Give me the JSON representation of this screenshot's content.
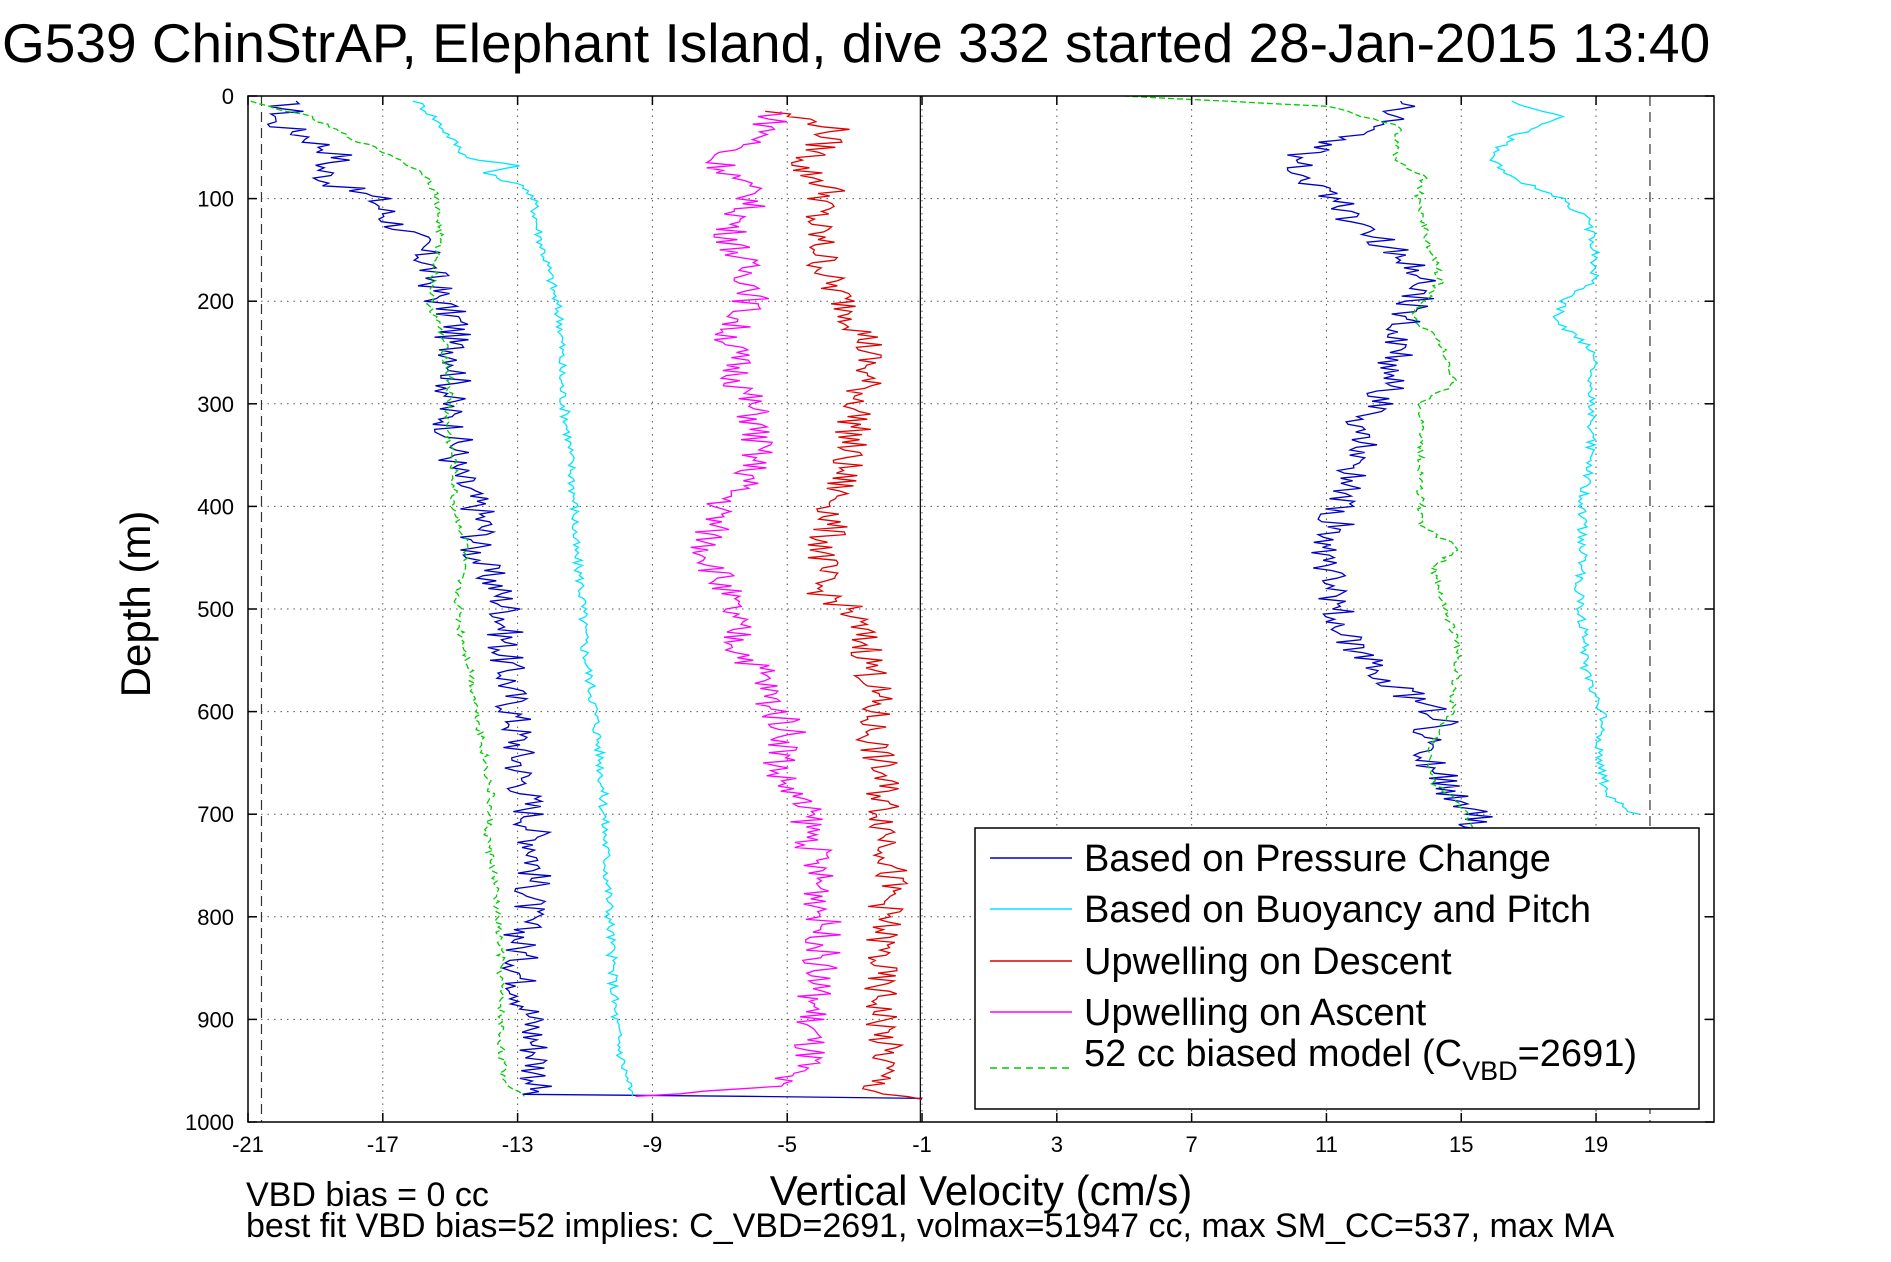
{
  "chart_data": {
    "type": "line",
    "title": "G539 ChinStrAP, Elephant Island, dive 332 started 28-Jan-2015 13:40",
    "xlabel": "Vertical Velocity (cm/s)",
    "ylabel": "Depth (m)",
    "xlim": [
      -21,
      22.5
    ],
    "ylim": [
      0,
      1000
    ],
    "y_reversed": true,
    "grid": true,
    "legend_placement": "bottom-right",
    "xticks": [
      "-21",
      "-17",
      "-13",
      "-9",
      "-5",
      "-1",
      "3",
      "7",
      "11",
      "15",
      "19"
    ],
    "yticks": [
      "0",
      "100",
      "200",
      "300",
      "400",
      "500",
      "600",
      "700",
      "800",
      "900",
      "1000"
    ],
    "reference_lines_x": [
      -1.05,
      -20.6,
      20.6
    ],
    "series": [
      {
        "name": "Based on Pressure Change",
        "color": "#0000c8",
        "style": "solid",
        "points": [
          [
            -20,
            5
          ],
          [
            -19.8,
            15
          ],
          [
            -20.3,
            25
          ],
          [
            -19.2,
            40
          ],
          [
            -18.2,
            60
          ],
          [
            -18.8,
            70
          ],
          [
            -18.5,
            85
          ],
          [
            -17.2,
            100
          ],
          [
            -16.8,
            120
          ],
          [
            -16.0,
            140
          ],
          [
            -15.7,
            160
          ],
          [
            -15.5,
            180
          ],
          [
            -15.3,
            200
          ],
          [
            -14.8,
            220
          ],
          [
            -15.0,
            240
          ],
          [
            -14.7,
            260
          ],
          [
            -14.9,
            280
          ],
          [
            -15.1,
            300
          ],
          [
            -15.0,
            320
          ],
          [
            -14.8,
            340
          ],
          [
            -14.9,
            360
          ],
          [
            -14.6,
            380
          ],
          [
            -14.2,
            400
          ],
          [
            -14.0,
            420
          ],
          [
            -14.3,
            440
          ],
          [
            -14.0,
            460
          ],
          [
            -13.6,
            480
          ],
          [
            -13.3,
            500
          ],
          [
            -13.4,
            540
          ],
          [
            -13.2,
            580
          ],
          [
            -13.0,
            620
          ],
          [
            -12.9,
            660
          ],
          [
            -12.6,
            700
          ],
          [
            -12.4,
            740
          ],
          [
            -12.6,
            780
          ],
          [
            -12.9,
            820
          ],
          [
            -12.9,
            860
          ],
          [
            -12.6,
            900
          ],
          [
            -12.4,
            940
          ],
          [
            -12.4,
            960
          ],
          [
            -12.6,
            973
          ],
          [
            -1.0,
            977
          ]
        ],
        "points_ascent": [
          [
            12.8,
            975
          ],
          [
            15.3,
            720
          ],
          [
            15.6,
            700
          ],
          [
            14.7,
            680
          ],
          [
            14.4,
            660
          ],
          [
            13.8,
            640
          ],
          [
            14.0,
            620
          ],
          [
            14.6,
            610
          ],
          [
            13.3,
            580
          ],
          [
            12.6,
            560
          ],
          [
            11.7,
            540
          ],
          [
            11.5,
            520
          ],
          [
            11.3,
            500
          ],
          [
            11.3,
            480
          ],
          [
            11.0,
            460
          ],
          [
            11.1,
            440
          ],
          [
            11.3,
            420
          ],
          [
            11.3,
            400
          ],
          [
            11.7,
            380
          ],
          [
            11.6,
            360
          ],
          [
            12.0,
            340
          ],
          [
            11.8,
            320
          ],
          [
            12.6,
            300
          ],
          [
            12.8,
            280
          ],
          [
            12.9,
            260
          ],
          [
            13.2,
            240
          ],
          [
            13.4,
            220
          ],
          [
            13.6,
            200
          ],
          [
            14.0,
            180
          ],
          [
            13.3,
            160
          ],
          [
            12.5,
            140
          ],
          [
            11.7,
            120
          ],
          [
            11.4,
            100
          ],
          [
            10.3,
            80
          ],
          [
            10.2,
            60
          ],
          [
            11.5,
            40
          ],
          [
            12.7,
            30
          ],
          [
            13.0,
            15
          ],
          [
            13.2,
            5
          ]
        ]
      },
      {
        "name": "Based on Buoyancy and Pitch",
        "color": "#00e5ff",
        "style": "solid",
        "points": [
          [
            -16.0,
            5
          ],
          [
            -15.5,
            20
          ],
          [
            -15.0,
            40
          ],
          [
            -14.5,
            60
          ],
          [
            -13.0,
            68
          ],
          [
            -14.0,
            75
          ],
          [
            -12.7,
            90
          ],
          [
            -12.5,
            105
          ],
          [
            -12.4,
            130
          ],
          [
            -12.0,
            180
          ],
          [
            -11.7,
            225
          ],
          [
            -11.7,
            280
          ],
          [
            -11.5,
            330
          ],
          [
            -11.3,
            400
          ],
          [
            -11.3,
            440
          ],
          [
            -11.1,
            480
          ],
          [
            -11.0,
            540
          ],
          [
            -10.7,
            600
          ],
          [
            -10.5,
            660
          ],
          [
            -10.4,
            720
          ],
          [
            -10.3,
            780
          ],
          [
            -10.2,
            840
          ],
          [
            -10.1,
            900
          ],
          [
            -9.9,
            940
          ],
          [
            -9.6,
            975
          ]
        ],
        "points_ascent": [
          [
            20.2,
            700
          ],
          [
            19.3,
            680
          ],
          [
            19.1,
            640
          ],
          [
            19.2,
            600
          ],
          [
            18.7,
            560
          ],
          [
            18.6,
            520
          ],
          [
            18.5,
            480
          ],
          [
            18.6,
            440
          ],
          [
            18.6,
            400
          ],
          [
            18.8,
            360
          ],
          [
            18.9,
            320
          ],
          [
            18.9,
            280
          ],
          [
            19.0,
            250
          ],
          [
            17.8,
            220
          ],
          [
            18.0,
            200
          ],
          [
            18.9,
            180
          ],
          [
            19.0,
            150
          ],
          [
            18.7,
            120
          ],
          [
            18.0,
            100
          ],
          [
            16.5,
            80
          ],
          [
            15.8,
            60
          ],
          [
            16.5,
            40
          ],
          [
            18.0,
            20
          ],
          [
            16.5,
            5
          ]
        ]
      },
      {
        "name": "Upwelling on Descent",
        "color": "#e00000",
        "style": "solid",
        "points": [
          [
            -5.5,
            15
          ],
          [
            -3.6,
            30
          ],
          [
            -4.0,
            50
          ],
          [
            -4.6,
            70
          ],
          [
            -3.7,
            90
          ],
          [
            -4.2,
            120
          ],
          [
            -4.0,
            150
          ],
          [
            -3.8,
            180
          ],
          [
            -3.1,
            210
          ],
          [
            -2.6,
            240
          ],
          [
            -2.7,
            280
          ],
          [
            -3.0,
            320
          ],
          [
            -3.3,
            360
          ],
          [
            -3.6,
            400
          ],
          [
            -3.9,
            440
          ],
          [
            -4.1,
            480
          ],
          [
            -3.2,
            500
          ],
          [
            -2.6,
            540
          ],
          [
            -2.4,
            580
          ],
          [
            -2.5,
            620
          ],
          [
            -2.2,
            660
          ],
          [
            -2.1,
            700
          ],
          [
            -1.9,
            740
          ],
          [
            -2.0,
            780
          ],
          [
            -2.2,
            820
          ],
          [
            -2.3,
            860
          ],
          [
            -2.2,
            900
          ],
          [
            -2.1,
            940
          ],
          [
            -2.4,
            970
          ],
          [
            -1.0,
            978
          ]
        ]
      },
      {
        "name": "Upwelling on Ascent",
        "color": "#ff00ff",
        "style": "solid",
        "points": [
          [
            -5.3,
            15
          ],
          [
            -5.7,
            40
          ],
          [
            -7.2,
            60
          ],
          [
            -6.5,
            80
          ],
          [
            -6.0,
            100
          ],
          [
            -6.7,
            130
          ],
          [
            -6.4,
            160
          ],
          [
            -5.9,
            190
          ],
          [
            -6.7,
            230
          ],
          [
            -6.5,
            270
          ],
          [
            -6.0,
            310
          ],
          [
            -5.9,
            340
          ],
          [
            -6.1,
            370
          ],
          [
            -7.0,
            400
          ],
          [
            -7.4,
            440
          ],
          [
            -7.0,
            470
          ],
          [
            -6.7,
            500
          ],
          [
            -6.4,
            540
          ],
          [
            -5.8,
            560
          ],
          [
            -5.5,
            590
          ],
          [
            -4.9,
            620
          ],
          [
            -5.3,
            660
          ],
          [
            -4.4,
            700
          ],
          [
            -4.2,
            740
          ],
          [
            -4.0,
            780
          ],
          [
            -3.9,
            820
          ],
          [
            -4.1,
            860
          ],
          [
            -4.3,
            900
          ],
          [
            -4.4,
            940
          ],
          [
            -5.6,
            965
          ],
          [
            -9.5,
            975
          ]
        ]
      },
      {
        "name": "52 cc biased model (C_VBD=2691)",
        "color": "#00cc00",
        "style": "dashed",
        "points": [
          [
            -21,
            5
          ],
          [
            -19.2,
            20
          ],
          [
            -18.0,
            40
          ],
          [
            -16.6,
            60
          ],
          [
            -15.6,
            80
          ],
          [
            -15.4,
            100
          ],
          [
            -15.3,
            130
          ],
          [
            -15.4,
            160
          ],
          [
            -15.6,
            200
          ],
          [
            -15.2,
            240
          ],
          [
            -15.0,
            280
          ],
          [
            -15.1,
            320
          ],
          [
            -14.9,
            360
          ],
          [
            -14.9,
            400
          ],
          [
            -14.5,
            440
          ],
          [
            -14.8,
            480
          ],
          [
            -14.7,
            520
          ],
          [
            -14.4,
            560
          ],
          [
            -14.2,
            600
          ],
          [
            -14.0,
            640
          ],
          [
            -13.8,
            680
          ],
          [
            -13.9,
            720
          ],
          [
            -13.7,
            760
          ],
          [
            -13.6,
            800
          ],
          [
            -13.5,
            840
          ],
          [
            -13.5,
            880
          ],
          [
            -13.5,
            920
          ],
          [
            -13.4,
            960
          ],
          [
            -12.8,
            975
          ]
        ],
        "points_ascent": [
          [
            15.4,
            720
          ],
          [
            15.0,
            690
          ],
          [
            14.2,
            670
          ],
          [
            14.0,
            640
          ],
          [
            14.7,
            600
          ],
          [
            14.9,
            560
          ],
          [
            14.9,
            530
          ],
          [
            14.5,
            500
          ],
          [
            14.2,
            460
          ],
          [
            14.9,
            440
          ],
          [
            13.8,
            420
          ],
          [
            13.8,
            380
          ],
          [
            13.8,
            340
          ],
          [
            13.8,
            300
          ],
          [
            14.8,
            280
          ],
          [
            14.4,
            240
          ],
          [
            13.5,
            215
          ],
          [
            14.4,
            180
          ],
          [
            14.0,
            140
          ],
          [
            13.7,
            100
          ],
          [
            13.9,
            80
          ],
          [
            13.0,
            60
          ],
          [
            13.2,
            30
          ],
          [
            11.0,
            10
          ],
          [
            5,
            0
          ]
        ]
      }
    ],
    "annotations": [
      "VBD bias = 0 cc",
      "best fit VBD bias=52 implies: C_VBD=2691, volmax=51947 cc, max SM_CC=537, max MA"
    ]
  },
  "legend": {
    "items": [
      "Based on Pressure Change",
      "Based on Buoyancy and Pitch",
      "Upwelling on Descent",
      "Upwelling on Ascent"
    ],
    "model_prefix": "52 cc biased model (C",
    "model_sub": "VBD",
    "model_suffix": "=2691)"
  },
  "footer": {
    "line1": "VBD bias = 0 cc",
    "line2": "best fit VBD bias=52 implies: C_VBD=2691, volmax=51947 cc, max SM_CC=537, max MA"
  }
}
